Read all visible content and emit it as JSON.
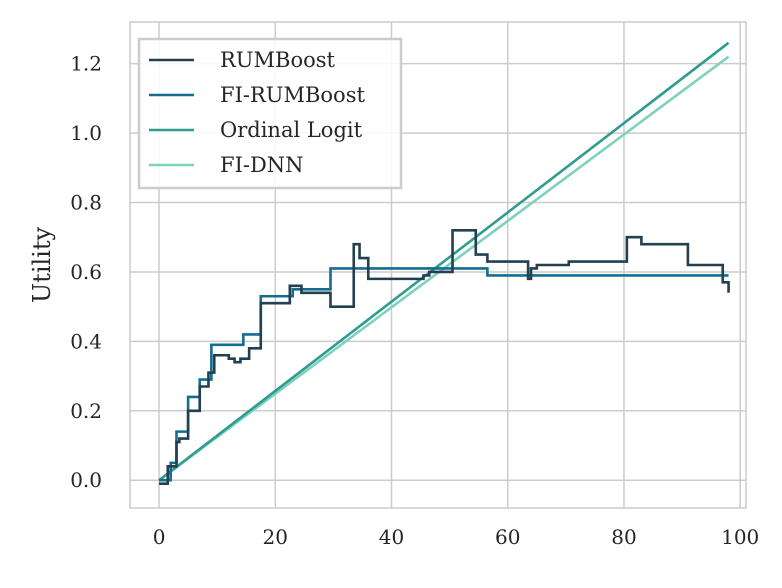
{
  "chart_data": {
    "type": "line",
    "title": "",
    "xlabel": "",
    "ylabel": "Utility",
    "xlim": [
      -5,
      101
    ],
    "ylim": [
      -0.08,
      1.32
    ],
    "xticks": [
      0,
      20,
      40,
      60,
      80,
      100
    ],
    "yticks": [
      0.0,
      0.2,
      0.4,
      0.6,
      0.8,
      1.0,
      1.2
    ],
    "xtick_labels": [
      "0",
      "20",
      "40",
      "60",
      "80",
      "100"
    ],
    "ytick_labels": [
      "0.0",
      "0.2",
      "0.4",
      "0.6",
      "0.8",
      "1.0",
      "1.2"
    ],
    "grid": true,
    "legend_position": "top-left",
    "series": [
      {
        "name": "RUMBoost",
        "color": "#22404F",
        "style": "step",
        "x": [
          0,
          1.5,
          3,
          3.5,
          5,
          7,
          8.5,
          9.5,
          12,
          13,
          14,
          15.5,
          17.5,
          22.5,
          24.5,
          29.5,
          33.5,
          34.5,
          36,
          44.5,
          45.5,
          46.5,
          50.5,
          54.5,
          56.5,
          63.5,
          64,
          65,
          70.5,
          80.5,
          83,
          91,
          97,
          98
        ],
        "y": [
          -0.01,
          0.04,
          0.11,
          0.12,
          0.2,
          0.27,
          0.31,
          0.36,
          0.35,
          0.34,
          0.35,
          0.38,
          0.51,
          0.56,
          0.54,
          0.5,
          0.68,
          0.64,
          0.58,
          0.58,
          0.59,
          0.6,
          0.72,
          0.65,
          0.63,
          0.58,
          0.61,
          0.62,
          0.63,
          0.7,
          0.68,
          0.62,
          0.57,
          0.54
        ]
      },
      {
        "name": "FI-RUMBoost",
        "color": "#156C91",
        "style": "step",
        "x": [
          0,
          2,
          3,
          5,
          7,
          9,
          14.5,
          17.5,
          23,
          29.5,
          56.5,
          98
        ],
        "y": [
          0.0,
          0.05,
          0.14,
          0.24,
          0.29,
          0.39,
          0.42,
          0.53,
          0.55,
          0.61,
          0.59,
          0.59
        ]
      },
      {
        "name": "Ordinal Logit",
        "color": "#2E9C8E",
        "style": "line",
        "x": [
          0,
          98
        ],
        "y": [
          0.0,
          1.26
        ]
      },
      {
        "name": "FI-DNN",
        "color": "#7FD1BE",
        "style": "line",
        "x": [
          0,
          98
        ],
        "y": [
          0.0,
          1.22
        ]
      }
    ]
  }
}
